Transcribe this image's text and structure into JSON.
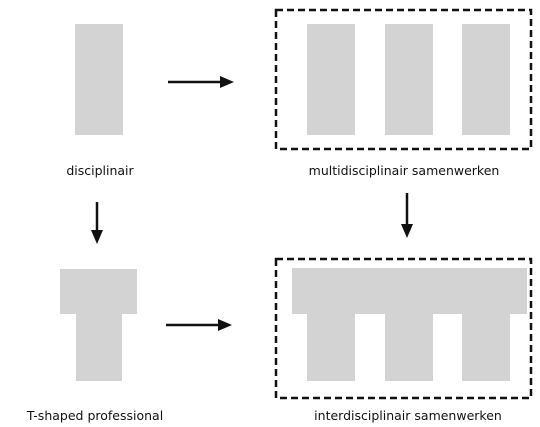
{
  "labels": {
    "disciplinary": "disciplinair",
    "multidisciplinary": "multidisciplinair samenwerken",
    "t_shaped": "T-shaped professional",
    "interdisciplinary": "interdisciplinair samenwerken"
  },
  "colors": {
    "block": "#d3d3d3",
    "line": "#111111",
    "background": "#ffffff"
  }
}
